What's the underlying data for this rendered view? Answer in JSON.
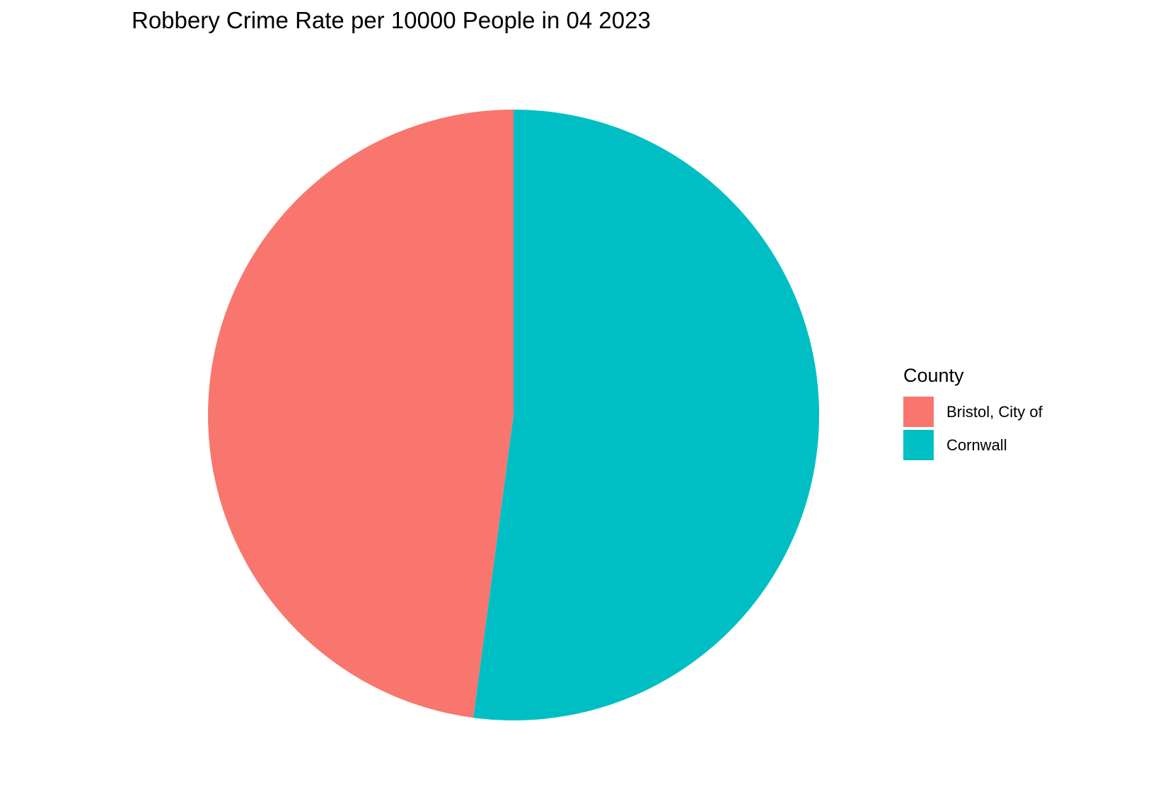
{
  "chart_data": {
    "type": "pie",
    "title": "Robbery Crime Rate per 10000 People in 04 2023",
    "legend_title": "County",
    "legend_position": "right",
    "start_angle": "12 o'clock",
    "direction": "counterclockwise",
    "slices": [
      {
        "label": "Bristol, City of",
        "share": 0.479,
        "color": "#F8766D"
      },
      {
        "label": "Cornwall",
        "share": 0.521,
        "color": "#00BFC4"
      }
    ]
  }
}
